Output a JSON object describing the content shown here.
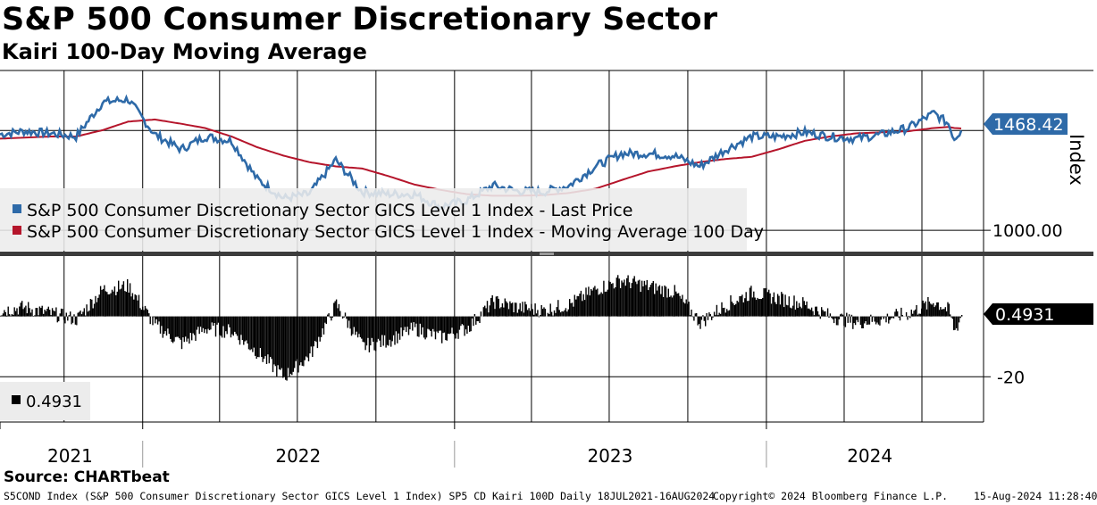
{
  "title": "S&P 500 Consumer Discretionary Sector",
  "subtitle": "Kairi 100-Day Moving Average",
  "source": "Source: CHARTbeat",
  "footer": {
    "left": "S5COND Index (S&P 500 Consumer Discretionary Sector GICS Level 1 Index) SP5 CD Kairi 100D  Daily 18JUL2021-16AUG2024",
    "copyright": "Copyright© 2024 Bloomberg Finance L.P.",
    "timestamp": "15-Aug-2024 11:28:40"
  },
  "colors": {
    "price": "#2e6aa8",
    "ma": "#b5152b",
    "kairi": "#000000",
    "last_tag_price": "#2e6aa8",
    "last_tag_kairi": "#000000"
  },
  "chart_data": [
    {
      "type": "line",
      "name": "price_panel",
      "axis_title": "Index",
      "ylim": [
        900,
        1750
      ],
      "y_ticks": [
        1000
      ],
      "y_tick_labels": [
        "1000.00"
      ],
      "reference_line": 1468.42,
      "legend": [
        "S&P 500 Consumer Discretionary Sector GICS Level 1 Index - Last Price",
        "S&P 500 Consumer Discretionary Sector GICS Level 1 Index - Moving Average 100 Day"
      ],
      "last_value_label": "1468.42",
      "x_dates": [
        "2021-07-18",
        "2021-08-15",
        "2021-09-15",
        "2021-10-15",
        "2021-11-15",
        "2021-12-15",
        "2022-01-15",
        "2022-02-15",
        "2022-03-15",
        "2022-04-15",
        "2022-05-15",
        "2022-06-15",
        "2022-07-15",
        "2022-08-15",
        "2022-09-15",
        "2022-10-15",
        "2022-11-15",
        "2022-12-15",
        "2023-01-15",
        "2023-02-15",
        "2023-03-15",
        "2023-04-15",
        "2023-05-15",
        "2023-06-15",
        "2023-07-15",
        "2023-08-15",
        "2023-09-15",
        "2023-10-15",
        "2023-11-15",
        "2023-12-15",
        "2024-01-15",
        "2024-02-15",
        "2024-03-15",
        "2024-04-15",
        "2024-05-15",
        "2024-06-15",
        "2024-07-15",
        "2024-08-01",
        "2024-08-08",
        "2024-08-16"
      ],
      "series": [
        {
          "name": "Last Price",
          "values": [
            1450,
            1465,
            1455,
            1440,
            1600,
            1615,
            1450,
            1380,
            1440,
            1420,
            1240,
            1150,
            1170,
            1330,
            1180,
            1170,
            1170,
            1110,
            1140,
            1210,
            1185,
            1180,
            1210,
            1300,
            1360,
            1360,
            1350,
            1300,
            1380,
            1440,
            1440,
            1460,
            1440,
            1430,
            1450,
            1480,
            1550,
            1500,
            1430,
            1468
          ]
        },
        {
          "name": "Moving Average 100 Day",
          "values": [
            1430,
            1435,
            1440,
            1440,
            1470,
            1510,
            1520,
            1500,
            1480,
            1440,
            1390,
            1350,
            1320,
            1300,
            1290,
            1255,
            1215,
            1190,
            1170,
            1162,
            1162,
            1165,
            1175,
            1195,
            1235,
            1275,
            1300,
            1320,
            1335,
            1345,
            1380,
            1420,
            1440,
            1455,
            1460,
            1465,
            1480,
            1485,
            1480,
            1478
          ]
        }
      ]
    },
    {
      "type": "bar",
      "name": "kairi_panel",
      "ylim": [
        -35,
        20
      ],
      "y_ticks": [
        -20
      ],
      "y_tick_labels": [
        "-20"
      ],
      "legend": [
        "0.4931"
      ],
      "last_value_label": "0.4931",
      "x_dates": [
        "2021-07-18",
        "2021-08-15",
        "2021-09-15",
        "2021-10-15",
        "2021-11-15",
        "2021-12-15",
        "2022-01-15",
        "2022-02-15",
        "2022-03-15",
        "2022-04-15",
        "2022-05-15",
        "2022-06-15",
        "2022-07-15",
        "2022-08-15",
        "2022-09-15",
        "2022-10-15",
        "2022-11-15",
        "2022-12-15",
        "2023-01-15",
        "2023-02-15",
        "2023-03-15",
        "2023-04-15",
        "2023-05-15",
        "2023-06-15",
        "2023-07-15",
        "2023-08-15",
        "2023-09-15",
        "2023-10-15",
        "2023-11-15",
        "2023-12-15",
        "2024-01-15",
        "2024-02-15",
        "2024-03-15",
        "2024-04-15",
        "2024-05-15",
        "2024-06-15",
        "2024-07-15",
        "2024-08-01",
        "2024-08-08",
        "2024-08-16"
      ],
      "values": [
        2,
        3,
        1,
        -1,
        9,
        10,
        -3,
        -9,
        -4,
        -5,
        -12,
        -20,
        -13,
        4,
        -10,
        -8,
        -4,
        -7,
        -4,
        5,
        3,
        2,
        4,
        9,
        12,
        10,
        8,
        -2,
        4,
        8,
        6,
        4,
        0,
        -2,
        -1,
        1,
        5,
        2,
        -5,
        0.4931
      ]
    }
  ],
  "x_axis": {
    "labels": [
      "2021",
      "2022",
      "2023",
      "2024"
    ]
  }
}
